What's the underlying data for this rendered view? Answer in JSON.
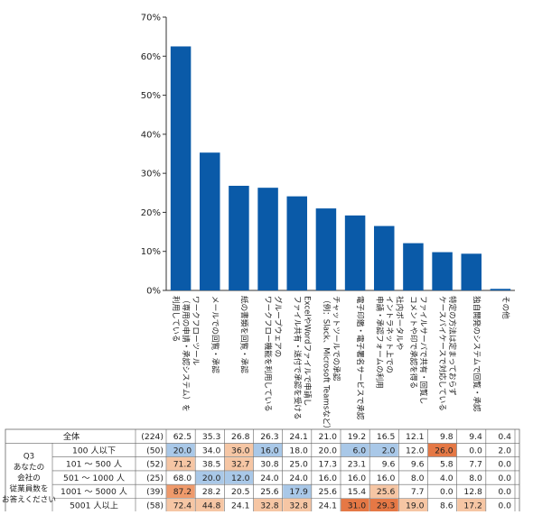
{
  "chart_data": {
    "type": "bar",
    "title": "",
    "xlabel": "",
    "ylabel": "",
    "ylim": [
      0,
      70
    ],
    "yticks": [
      "0%",
      "10%",
      "20%",
      "30%",
      "40%",
      "50%",
      "60%",
      "70%"
    ],
    "grid": false,
    "bar_color": "#0a5aa8",
    "categories": [
      [
        "ワークフローツール",
        "（専用の申請・承認システム）を",
        "利用している"
      ],
      [
        "メールでの回覧・承認"
      ],
      [
        "紙の書類を回覧・承認"
      ],
      [
        "グループウェアの",
        "ワークフロー機能を利用している"
      ],
      [
        "ExcelやWordファイルで申請し",
        "ファイル共有・送付で承認を受ける"
      ],
      [
        "チャットツールでの承認",
        "（例：Slack、Microsoft Teamsなど）"
      ],
      [
        "電子印鑑・電子署名サービスで承認"
      ],
      [
        "社内ポータルや",
        "イントラネット上での",
        "申請・承認フォームの利用"
      ],
      [
        "ファイルサーバで共有・回覧し",
        "コメントや印で承認を得る"
      ],
      [
        "特定の方法は定まっておらず",
        "ケースバイケースで対応している"
      ],
      [
        "独自開発のシステムで回覧・承認"
      ],
      [
        "その他"
      ]
    ],
    "values": [
      62.5,
      35.3,
      26.8,
      26.3,
      24.1,
      21.0,
      19.2,
      16.5,
      12.1,
      9.8,
      9.4,
      0.4
    ]
  },
  "table": {
    "question_label": [
      "Q3",
      "あなたの",
      "会社の",
      "従業員数を",
      "お答えください"
    ],
    "highlight_colors": {
      "blue": "#a9c8e8",
      "orange_light": "#f6c6a4",
      "orange": "#ef9a6b",
      "orange_dark": "#e57845"
    },
    "rows": [
      {
        "label": "全体",
        "n": "(224)",
        "values": [
          "62.5",
          "35.3",
          "26.8",
          "26.3",
          "24.1",
          "21.0",
          "19.2",
          "16.5",
          "12.1",
          "9.8",
          "9.4",
          "0.4"
        ],
        "shades": [
          "",
          "",
          "",
          "",
          "",
          "",
          "",
          "",
          "",
          "",
          "",
          ""
        ]
      },
      {
        "label": "100 人以下",
        "n": "(50)",
        "values": [
          "20.0",
          "34.0",
          "36.0",
          "16.0",
          "18.0",
          "20.0",
          "6.0",
          "2.0",
          "12.0",
          "26.0",
          "0.0",
          "2.0"
        ],
        "shades": [
          "blue",
          "",
          "orange_light",
          "blue",
          "",
          "",
          "blue",
          "blue",
          "",
          "orange_dark",
          "",
          ""
        ]
      },
      {
        "label": "101 ～ 500 人",
        "n": "(52)",
        "values": [
          "71.2",
          "38.5",
          "32.7",
          "30.8",
          "25.0",
          "17.3",
          "23.1",
          "9.6",
          "9.6",
          "5.8",
          "7.7",
          "0.0"
        ],
        "shades": [
          "orange_light",
          "",
          "orange_light",
          "",
          "",
          "",
          "",
          "",
          "",
          "",
          "",
          ""
        ]
      },
      {
        "label": "501 ～ 1000 人",
        "n": "(25)",
        "values": [
          "68.0",
          "20.0",
          "12.0",
          "24.0",
          "24.0",
          "16.0",
          "16.0",
          "16.0",
          "8.0",
          "4.0",
          "8.0",
          "0.0"
        ],
        "shades": [
          "",
          "blue",
          "blue",
          "",
          "",
          "",
          "",
          "",
          "",
          "",
          "",
          ""
        ]
      },
      {
        "label": "1001 ～ 5000 人",
        "n": "(39)",
        "values": [
          "87.2",
          "28.2",
          "20.5",
          "25.6",
          "17.9",
          "25.6",
          "15.4",
          "25.6",
          "7.7",
          "0.0",
          "12.8",
          "0.0"
        ],
        "shades": [
          "orange",
          "",
          "",
          "",
          "blue",
          "",
          "",
          "orange_light",
          "",
          "",
          "",
          ""
        ]
      },
      {
        "label": "5001 人以上",
        "n": "(58)",
        "values": [
          "72.4",
          "44.8",
          "24.1",
          "32.8",
          "32.8",
          "24.1",
          "31.0",
          "29.3",
          "19.0",
          "8.6",
          "17.2",
          "0.0"
        ],
        "shades": [
          "orange_light",
          "orange_light",
          "",
          "orange_light",
          "orange_light",
          "",
          "orange_dark",
          "orange_dark",
          "orange_light",
          "",
          "orange_light",
          ""
        ]
      }
    ]
  }
}
